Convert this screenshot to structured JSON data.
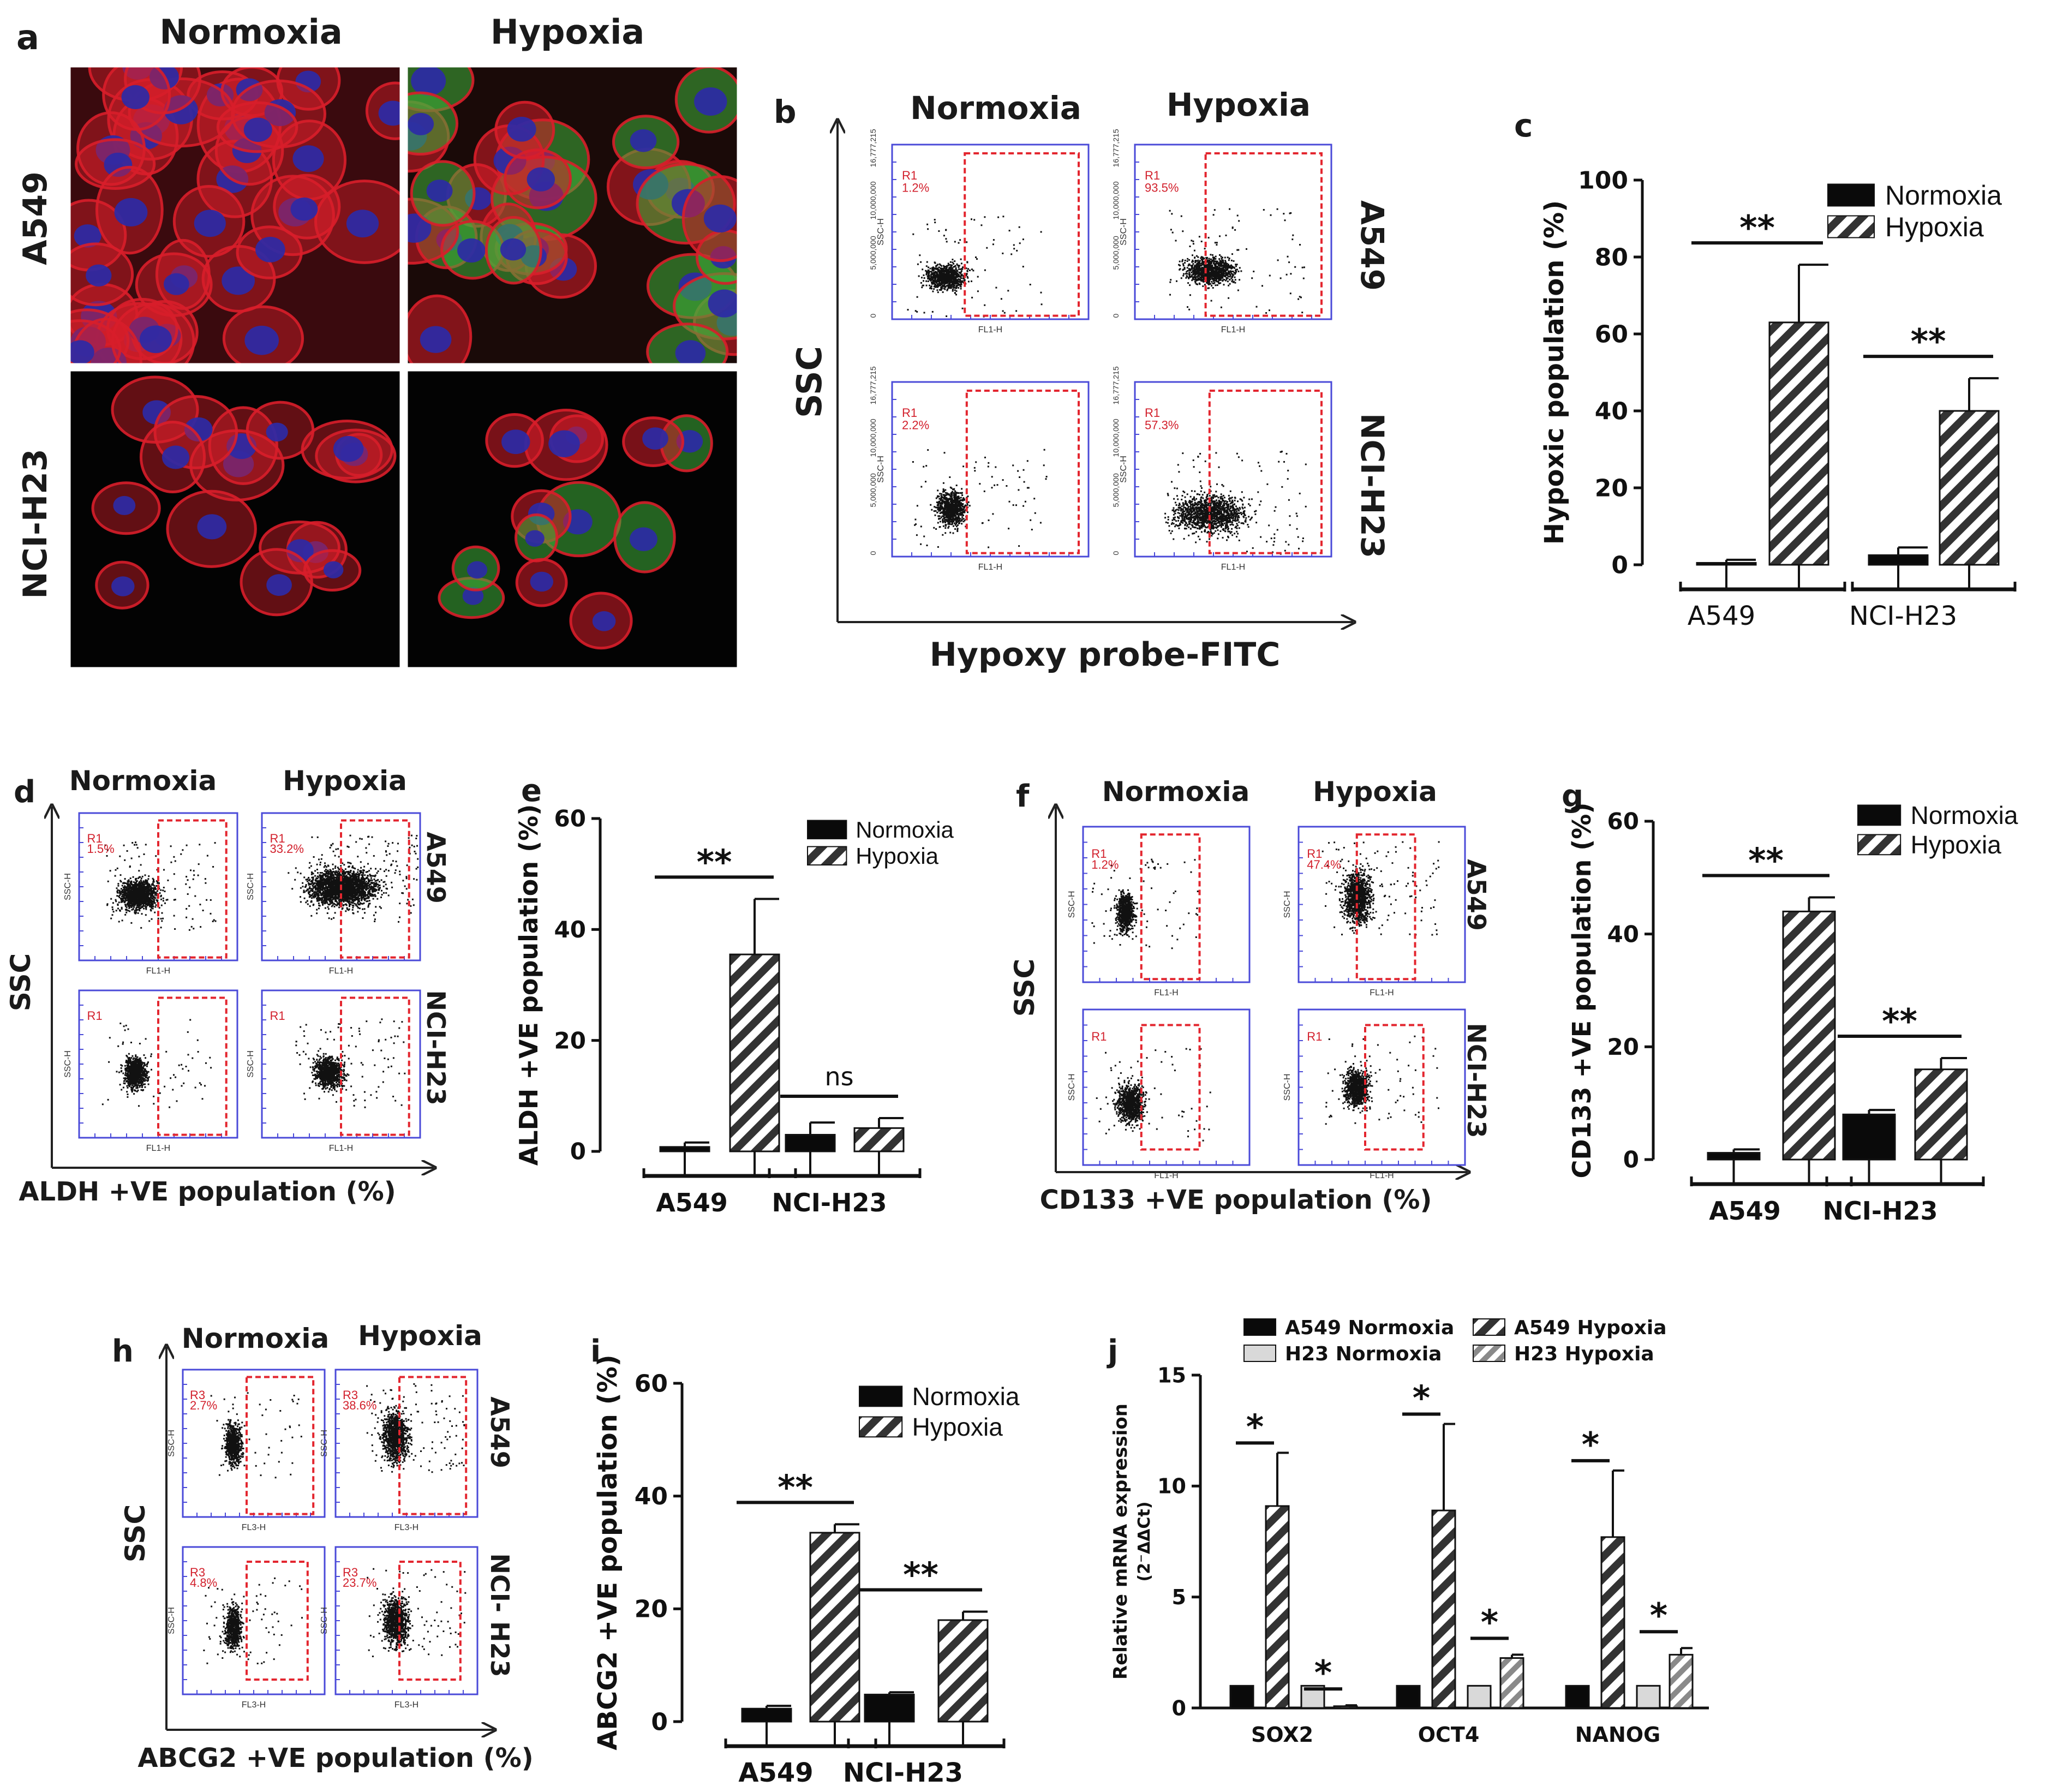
{
  "panel_letters": {
    "a": "a",
    "b": "b",
    "c": "c",
    "d": "d",
    "e": "e",
    "f": "f",
    "g": "g",
    "h": "h",
    "i": "i",
    "j": "j"
  },
  "micro": {
    "col_normoxia": "Normoxia",
    "col_hypoxia": "Hypoxia",
    "row_a549": "A549",
    "row_h23": "NCI-H23",
    "colors": {
      "actin": "#d81e2a",
      "nucleus": "#2c2aa6",
      "probe": "#3fb13a"
    }
  },
  "flow": {
    "b": {
      "col_labels": [
        "Normoxia",
        "Hypoxia"
      ],
      "row_labels": [
        "A549",
        "NCI-H23"
      ],
      "y_axis": "SSC",
      "x_axis": "Hypoxy probe-FITC",
      "plots": [
        {
          "gate": "R1",
          "pct": "1.2%",
          "xlab": "FL1-H",
          "ylab": "SSC-H"
        },
        {
          "gate": "R1",
          "pct": "93.5%",
          "xlab": "FL1-H",
          "ylab": "SSC-H"
        },
        {
          "gate": "R1",
          "pct": "2.2%",
          "xlab": "FL1-H",
          "ylab": "SSC-H"
        },
        {
          "gate": "R1",
          "pct": "57.3%",
          "xlab": "FL1-H",
          "ylab": "SSC-H"
        }
      ],
      "ytick_labels": [
        "16,777,215",
        "10,000,000",
        "5,000,000",
        "0"
      ]
    },
    "d": {
      "col_labels": [
        "Normoxia",
        "Hypoxia"
      ],
      "row_labels": [
        "A549",
        "NCI-H23"
      ],
      "y_axis": "SSC",
      "x_axis": "ALDH +VE population  (%)",
      "plots": [
        {
          "gate": "R1",
          "pct": "1.5%",
          "xlab": "FL1-H",
          "ylab": "SSC-H"
        },
        {
          "gate": "R1",
          "pct": "33.2%",
          "xlab": "FL1-H",
          "ylab": "SSC-H"
        },
        {
          "gate": "R1",
          "pct": "",
          "xlab": "FL1-H",
          "ylab": "SSC-H"
        },
        {
          "gate": "R1",
          "pct": "",
          "xlab": "FL1-H",
          "ylab": "SSC-H"
        }
      ]
    },
    "f": {
      "col_labels": [
        "Normoxia",
        "Hypoxia"
      ],
      "row_labels": [
        "A549",
        "NCI-H23"
      ],
      "y_axis": "SSC",
      "x_axis": "CD133 +VE population (%)",
      "plots": [
        {
          "gate": "R1",
          "pct": "1.2%",
          "xlab": "FL1-H",
          "ylab": "SSC-H"
        },
        {
          "gate": "R1",
          "pct": "47.4%",
          "xlab": "FL1-H",
          "ylab": "SSC-H"
        },
        {
          "gate": "R1",
          "pct": "",
          "xlab": "FL1-H",
          "ylab": "SSC-H"
        },
        {
          "gate": "R1",
          "pct": "",
          "xlab": "FL1-H",
          "ylab": "SSC-H"
        }
      ]
    },
    "h": {
      "col_labels": [
        "Normoxia",
        "Hypoxia"
      ],
      "row_labels": [
        "A549",
        "NCI- H23"
      ],
      "y_axis": "SSC",
      "x_axis": "ABCG2 +VE population (%)",
      "plots": [
        {
          "gate": "R3",
          "pct": "2.7%",
          "xlab": "FL3-H",
          "ylab": "SSC-H"
        },
        {
          "gate": "R3",
          "pct": "38.6%",
          "xlab": "FL3-H",
          "ylab": "SSC-H"
        },
        {
          "gate": "R3",
          "pct": "4.8%",
          "xlab": "FL3-H",
          "ylab": "SSC-H"
        },
        {
          "gate": "R3",
          "pct": "23.7%",
          "xlab": "FL3-H",
          "ylab": "SSC-H"
        }
      ]
    }
  },
  "chart_data": [
    {
      "panel": "c",
      "type": "bar",
      "ylabel": "Hypoxic population (%)",
      "categories": [
        "A549",
        "NCI-H23"
      ],
      "ylim": [
        0,
        100
      ],
      "yticks": [
        0,
        20,
        40,
        60,
        80,
        100
      ],
      "series": [
        {
          "name": "Normoxia",
          "values": [
            0.5,
            2.5
          ],
          "errors": [
            0.8,
            2.0
          ]
        },
        {
          "name": "Hypoxia",
          "values": [
            63,
            40
          ],
          "errors": [
            15,
            8.5
          ]
        }
      ],
      "significance": [
        "**",
        "**"
      ],
      "legend": "top-right"
    },
    {
      "panel": "e",
      "type": "bar",
      "ylabel": "ALDH +VE population (%)",
      "categories": [
        "A549",
        "NCI-H23"
      ],
      "ylim": [
        0,
        60
      ],
      "yticks": [
        0,
        20,
        40,
        60
      ],
      "series": [
        {
          "name": "Normoxia",
          "values": [
            0.8,
            3.0
          ],
          "errors": [
            0.8,
            2.2
          ]
        },
        {
          "name": "Hypoxia",
          "values": [
            35.5,
            4.2
          ],
          "errors": [
            10,
            1.8
          ]
        }
      ],
      "significance": [
        "**",
        "ns"
      ],
      "legend": "top-right"
    },
    {
      "panel": "g",
      "type": "bar",
      "ylabel": "CD133 +VE population (%)",
      "categories": [
        "A549",
        "NCI-H23"
      ],
      "ylim": [
        0,
        60
      ],
      "yticks": [
        0,
        20,
        40,
        60
      ],
      "series": [
        {
          "name": "Normoxia",
          "values": [
            1.2,
            8.0
          ],
          "errors": [
            0.6,
            0.8
          ]
        },
        {
          "name": "Hypoxia",
          "values": [
            44,
            16
          ],
          "errors": [
            2.5,
            2.0
          ]
        }
      ],
      "significance": [
        "**",
        "**"
      ],
      "legend": "top-right"
    },
    {
      "panel": "i",
      "type": "bar",
      "ylabel": "ABCG2 +VE population (%)",
      "categories": [
        "A549",
        "NCI-H23"
      ],
      "ylim": [
        0,
        60
      ],
      "yticks": [
        0,
        20,
        40,
        60
      ],
      "series": [
        {
          "name": "Normoxia",
          "values": [
            2.3,
            4.8
          ],
          "errors": [
            0.5,
            0.4
          ]
        },
        {
          "name": "Hypoxia",
          "values": [
            33.5,
            18
          ],
          "errors": [
            1.5,
            1.5
          ]
        }
      ],
      "significance": [
        "**",
        "**"
      ],
      "legend": "top-right"
    },
    {
      "panel": "j",
      "type": "bar",
      "ylabel": "Relative mRNA expression",
      "ylabel2": "(2⁻ΔΔCt)",
      "categories": [
        "SOX2",
        "OCT4",
        "NANOG"
      ],
      "ylim": [
        0,
        15
      ],
      "yticks": [
        0,
        5,
        10,
        15
      ],
      "series": [
        {
          "name": "A549 Normoxia",
          "values": [
            1,
            1,
            1
          ],
          "errors": [
            0,
            0,
            0
          ]
        },
        {
          "name": "A549 Hypoxia",
          "values": [
            9.1,
            8.9,
            7.7
          ],
          "errors": [
            2.4,
            3.9,
            3.0
          ]
        },
        {
          "name": "H23 Normoxia",
          "values": [
            1,
            1,
            1
          ],
          "errors": [
            0,
            0,
            0
          ]
        },
        {
          "name": "H23 Hypoxia",
          "values": [
            0.08,
            2.25,
            2.4
          ],
          "errors": [
            0.04,
            0.15,
            0.3
          ]
        }
      ],
      "significance": [
        "*",
        "*",
        "*",
        "*",
        "*",
        "*"
      ],
      "legend": "top"
    }
  ]
}
